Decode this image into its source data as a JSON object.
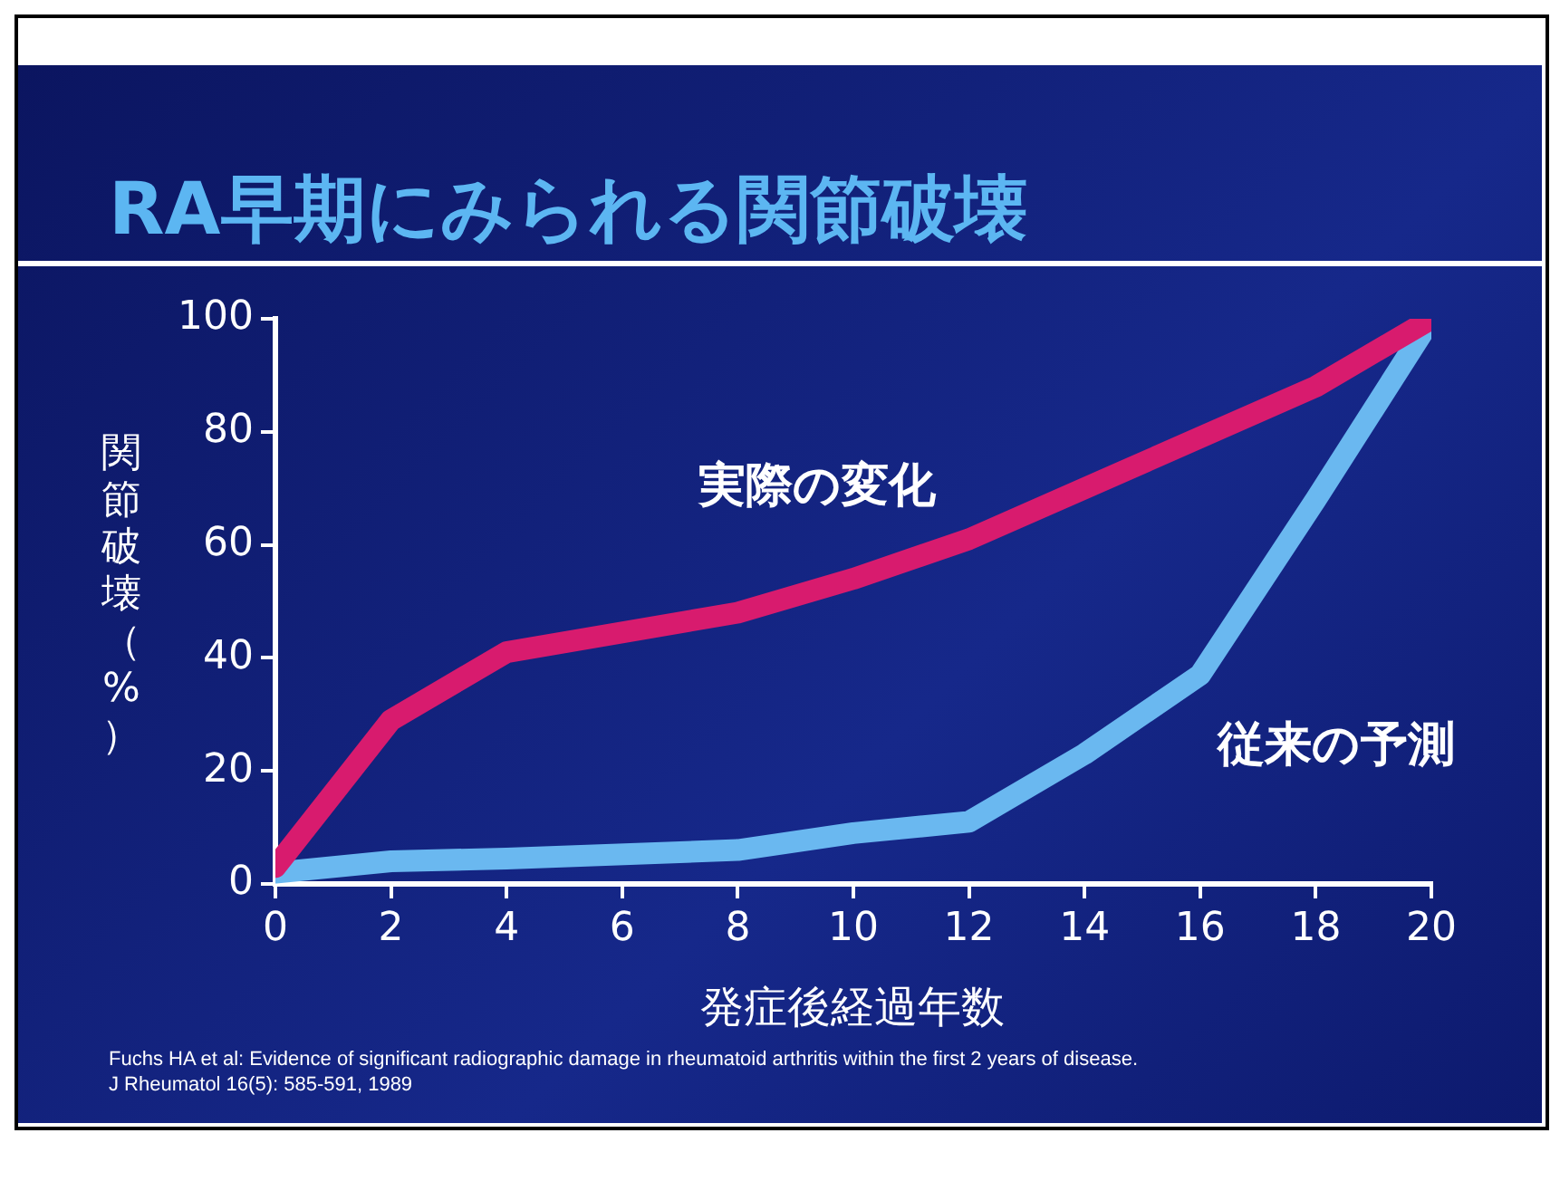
{
  "chart_data": {
    "type": "line",
    "title": "RA早期にみられる関節破壊",
    "xlabel": "発症後経過年数",
    "ylabel": "関節破壊（%）",
    "x": [
      0,
      2,
      4,
      8,
      10,
      12,
      14,
      16,
      18,
      20
    ],
    "series": [
      {
        "name": "実際の変化",
        "color": "#d81b6e",
        "values": [
          3,
          29,
          41,
          48,
          54,
          61,
          70,
          79,
          88,
          100
        ]
      },
      {
        "name": "従来の予測",
        "color": "#6ab8f0",
        "values": [
          2,
          4,
          4.5,
          6,
          9,
          11,
          23,
          37,
          68,
          100
        ]
      }
    ],
    "xlim": [
      0,
      20
    ],
    "xticks": [
      0,
      2,
      4,
      6,
      8,
      10,
      12,
      14,
      16,
      18,
      20
    ],
    "ylim": [
      0,
      100
    ],
    "yticks": [
      0,
      20,
      40,
      60,
      80,
      100
    ],
    "grid": false,
    "legend": false,
    "marker": "none",
    "line_style": "solid",
    "annotations": [
      "Fuchs HA  et al:  Evidence of significant radiographic damage in rheumatoid arthritis within the first 2 years of disease.",
      "J Rheumatol 16(5):  585-591,  1989"
    ]
  }
}
